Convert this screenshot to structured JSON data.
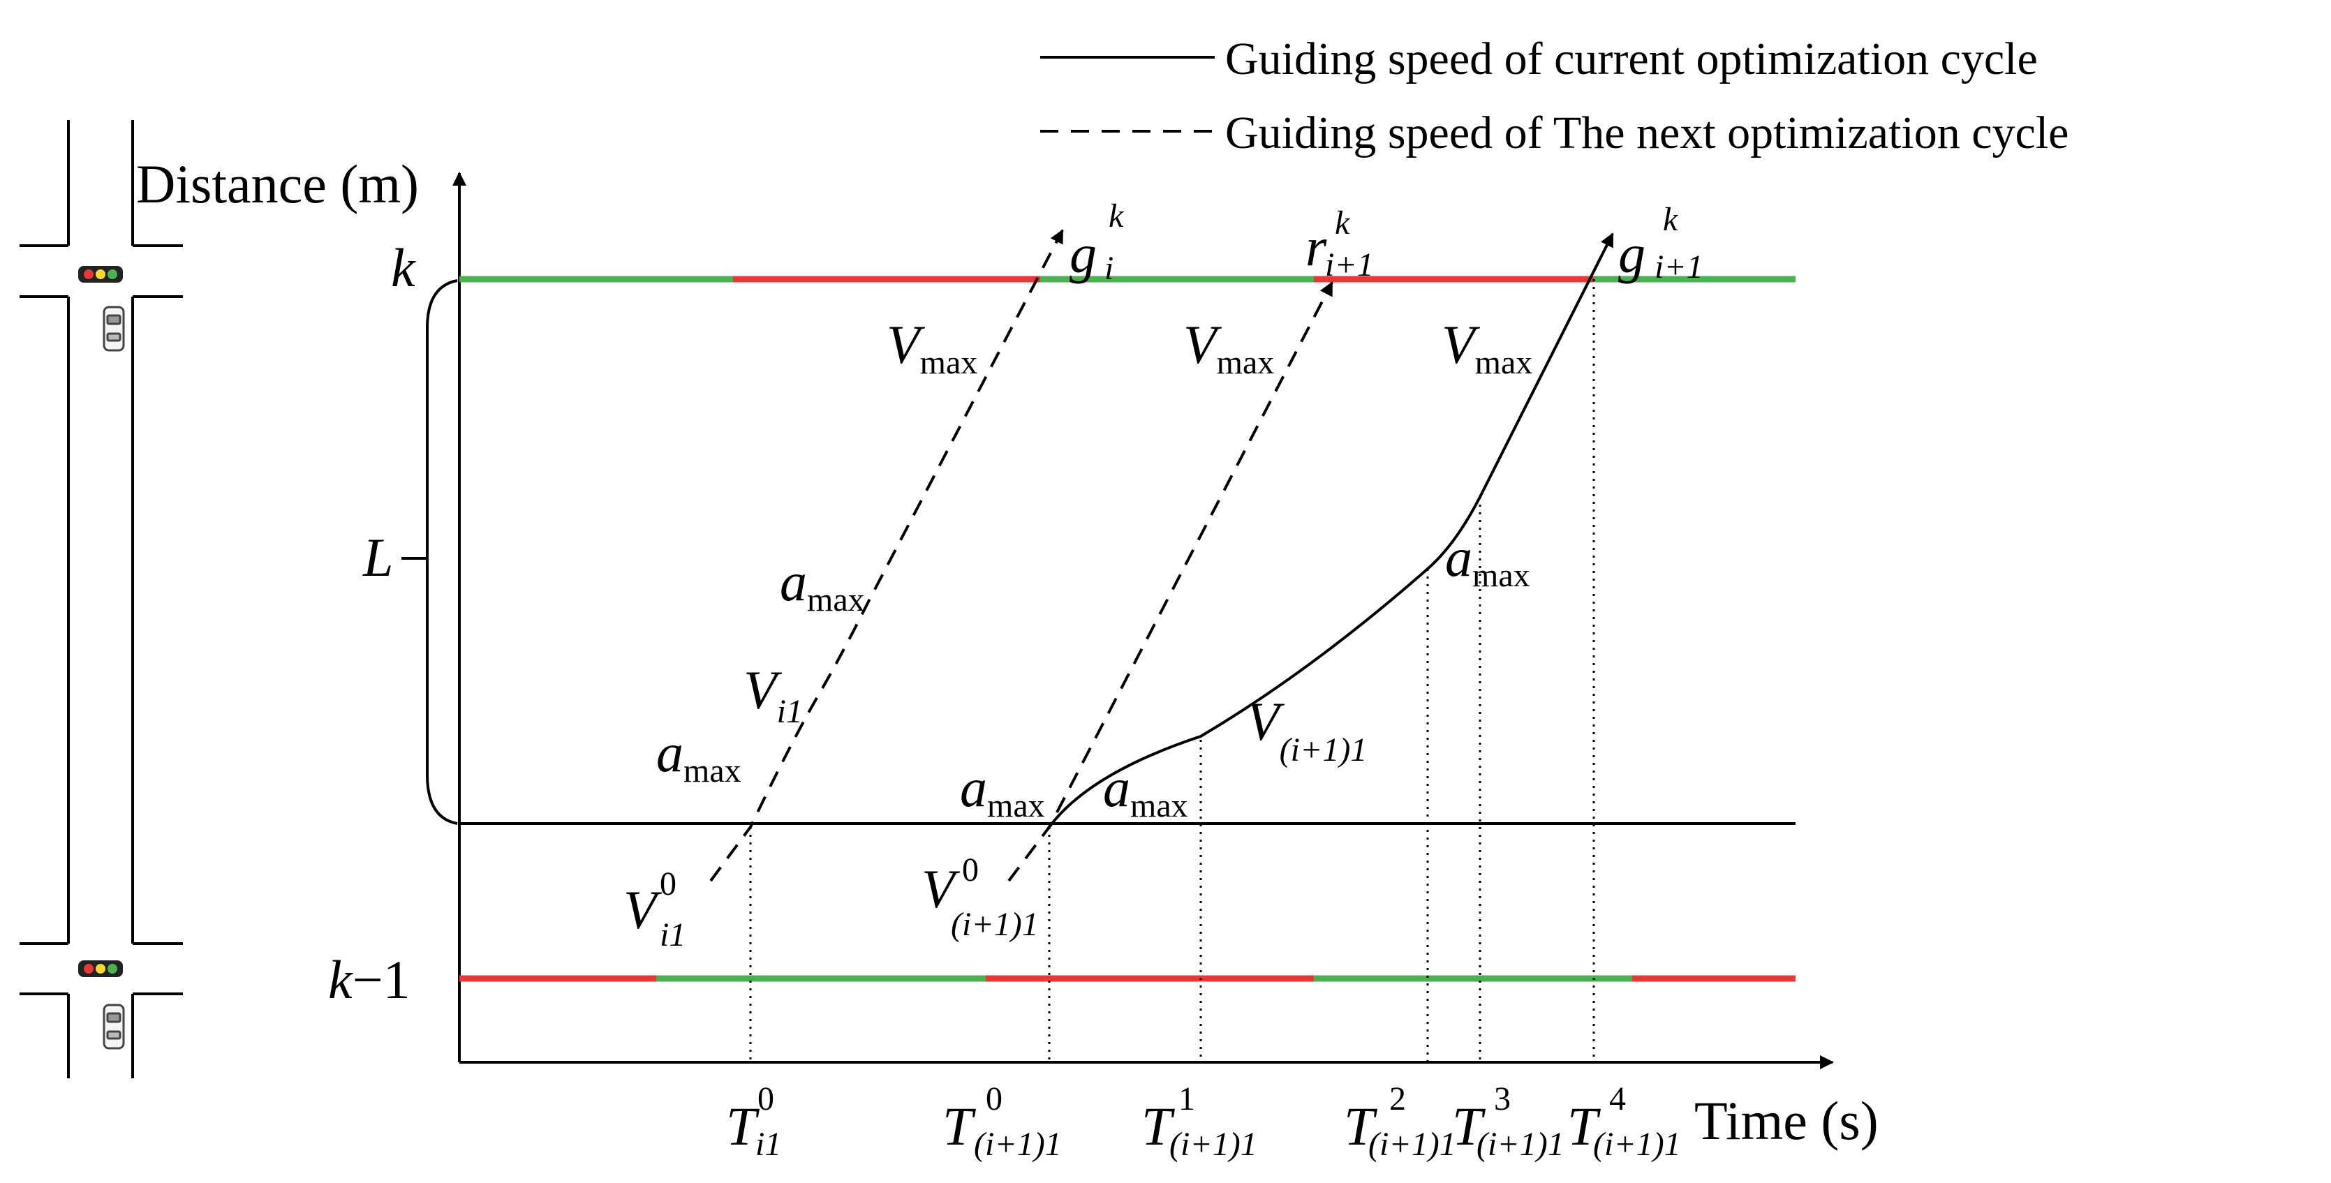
{
  "legend": {
    "solid": "Guiding speed of current optimization cycle",
    "dashed": "Guiding speed of The next optimization cycle"
  },
  "axes": {
    "y_label": "Distance (m)",
    "x_label": "Time (s)"
  },
  "y_levels": {
    "top": "k",
    "bottom_k": "k",
    "bottom_minus": "−",
    "bottom_one": "1",
    "span": "L"
  },
  "labels": {
    "vmax": "V",
    "vmax_sub": "max",
    "a": "a",
    "a_sub": "max",
    "V": "V",
    "V_i1_sub": "i1",
    "V_i1_0_sup": "0",
    "V_ip1_sub": "(i+1)1",
    "V_ip1_0_sup": "0",
    "g": "g",
    "g_i_sub": "i",
    "g_i_sup": "k",
    "g_ip1_sub": "i+1",
    "g_ip1_sup": "k",
    "r": "r",
    "r_ip1_sub": "i+1",
    "r_ip1_sup": "k"
  },
  "time_ticks": [
    {
      "sub": "i1",
      "sup": "0"
    },
    {
      "sub": "(i+1)1",
      "sup": "0"
    },
    {
      "sub": "(i+1)1",
      "sup": "1"
    },
    {
      "sub": "(i+1)1",
      "sup": "2"
    },
    {
      "sub": "(i+1)1",
      "sup": "3"
    },
    {
      "sub": "(i+1)1",
      "sup": "4"
    }
  ],
  "tick_base": "T",
  "signal_colors": {
    "green": "#4caf50",
    "red": "#e53935"
  }
}
